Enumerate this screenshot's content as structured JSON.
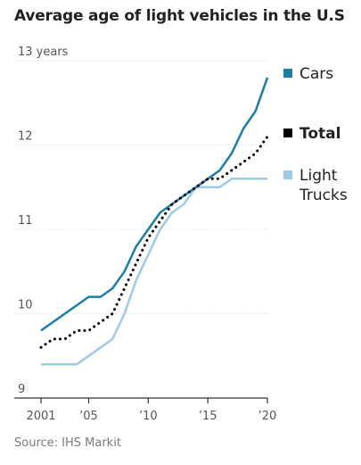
{
  "title": "Average age of light vehicles in the U.S",
  "source": "Source: IHS Markit",
  "chart_data": {
    "type": "line",
    "title": "Average age of light vehicles in the U.S",
    "xlabel": "",
    "ylabel": "",
    "x": [
      2001,
      2002,
      2003,
      2004,
      2005,
      2006,
      2007,
      2008,
      2009,
      2010,
      2011,
      2012,
      2013,
      2014,
      2015,
      2016,
      2017,
      2018,
      2019,
      2020
    ],
    "xlim": [
      2001,
      2020
    ],
    "ylim": [
      9,
      13
    ],
    "y_ticks": [
      9,
      10,
      11,
      12,
      13
    ],
    "y_tick_labels": [
      "9",
      "10",
      "11",
      "12",
      "13 years"
    ],
    "x_ticks": [
      2001,
      2005,
      2010,
      2015,
      2020
    ],
    "x_tick_labels": [
      "2001",
      "’05",
      "’10",
      "’15",
      "’20"
    ],
    "grid": true,
    "legend_position": "right, at series ends",
    "series": [
      {
        "name": "Cars",
        "color": "#1b7ea5",
        "style": "solid",
        "values": [
          9.8,
          9.9,
          10.0,
          10.1,
          10.2,
          10.2,
          10.3,
          10.5,
          10.8,
          11.0,
          11.2,
          11.3,
          11.4,
          11.5,
          11.6,
          11.7,
          11.9,
          12.2,
          12.4,
          12.8
        ]
      },
      {
        "name": "Total",
        "color": "#000000",
        "style": "dotted",
        "values": [
          9.6,
          9.7,
          9.7,
          9.8,
          9.8,
          9.9,
          10.0,
          10.3,
          10.6,
          10.9,
          11.1,
          11.3,
          11.4,
          11.5,
          11.6,
          11.6,
          11.7,
          11.8,
          11.9,
          12.1
        ]
      },
      {
        "name": "Light Trucks",
        "color": "#9ecae6",
        "style": "solid",
        "values": [
          9.4,
          9.4,
          9.4,
          9.4,
          9.5,
          9.6,
          9.7,
          10.0,
          10.4,
          10.7,
          11.0,
          11.2,
          11.3,
          11.5,
          11.5,
          11.5,
          11.6,
          11.6,
          11.6,
          11.6
        ]
      }
    ]
  }
}
